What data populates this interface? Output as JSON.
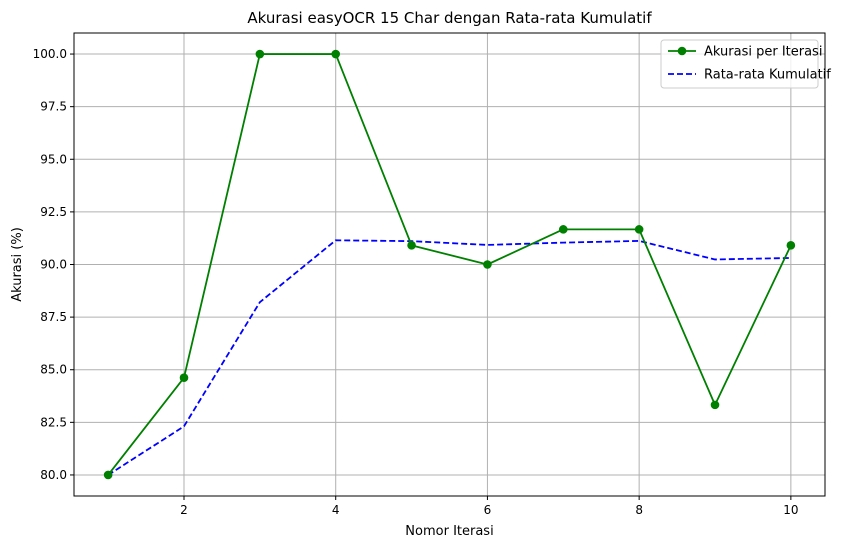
{
  "chart_data": {
    "type": "line",
    "title": "Akurasi easyOCR 15 Char dengan Rata-rata Kumulatif",
    "xlabel": "Nomor Iterasi",
    "ylabel": "Akurasi (%)",
    "xlim": [
      0.55,
      10.45
    ],
    "ylim": [
      79.0,
      101.0
    ],
    "xticks": [
      2,
      4,
      6,
      8,
      10
    ],
    "xtick_labels": [
      "2",
      "4",
      "6",
      "8",
      "10"
    ],
    "yticks": [
      80.0,
      82.5,
      85.0,
      87.5,
      90.0,
      92.5,
      95.0,
      97.5,
      100.0
    ],
    "ytick_labels": [
      "80.0",
      "82.5",
      "85.0",
      "87.5",
      "90.0",
      "92.5",
      "95.0",
      "97.5",
      "100.0"
    ],
    "grid": true,
    "legend_position": "top-right",
    "x": [
      1,
      2,
      3,
      4,
      5,
      6,
      7,
      8,
      9,
      10
    ],
    "series": [
      {
        "name": "Akurasi per Iterasi",
        "values": [
          80.0,
          84.62,
          100.0,
          100.0,
          90.91,
          90.0,
          91.67,
          91.67,
          83.33,
          90.91
        ],
        "color": "#008000",
        "line_style": "solid",
        "marker": "circle"
      },
      {
        "name": "Rata-rata Kumulatif",
        "values": [
          80.0,
          82.31,
          88.21,
          91.15,
          91.11,
          90.93,
          91.04,
          91.12,
          90.24,
          90.31
        ],
        "color": "#0000ff",
        "line_style": "dashed",
        "marker": "none"
      }
    ]
  }
}
